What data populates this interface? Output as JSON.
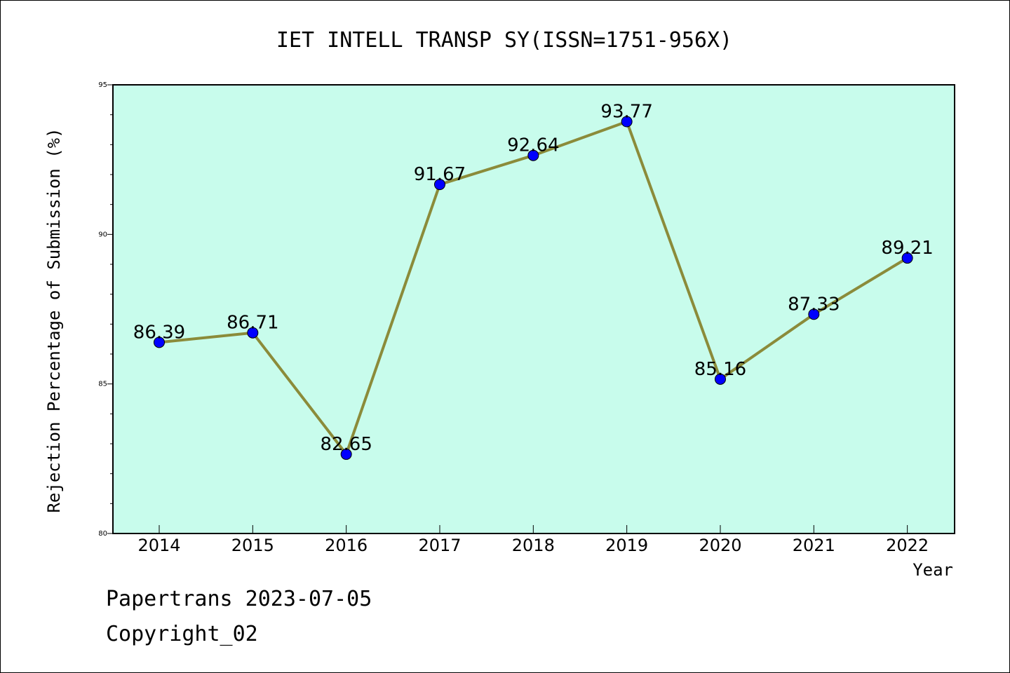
{
  "chart_data": {
    "type": "line",
    "title": "IET INTELL TRANSP SY(ISSN=1751-956X)",
    "xlabel": "Year",
    "ylabel": "Rejection Percentage of Submission (%)",
    "categories": [
      "2014",
      "2015",
      "2016",
      "2017",
      "2018",
      "2019",
      "2020",
      "2021",
      "2022"
    ],
    "values": [
      86.39,
      86.71,
      82.65,
      91.67,
      92.64,
      93.77,
      85.16,
      87.33,
      89.21
    ],
    "data_labels": [
      "86.39",
      "86.71",
      "82.65",
      "91.67",
      "92.64",
      "93.77",
      "85.16",
      "87.33",
      "89.21"
    ],
    "ylim": [
      80,
      95
    ],
    "yticks": [
      "80",
      "85",
      "90",
      "95"
    ],
    "grid": false,
    "colors": {
      "plot_background": "#c8fcec",
      "line": "#8b8b3a",
      "marker": "#0000ff"
    }
  },
  "footer": {
    "line1": "Papertrans 2023-07-05",
    "line2": "Copyright_02"
  }
}
